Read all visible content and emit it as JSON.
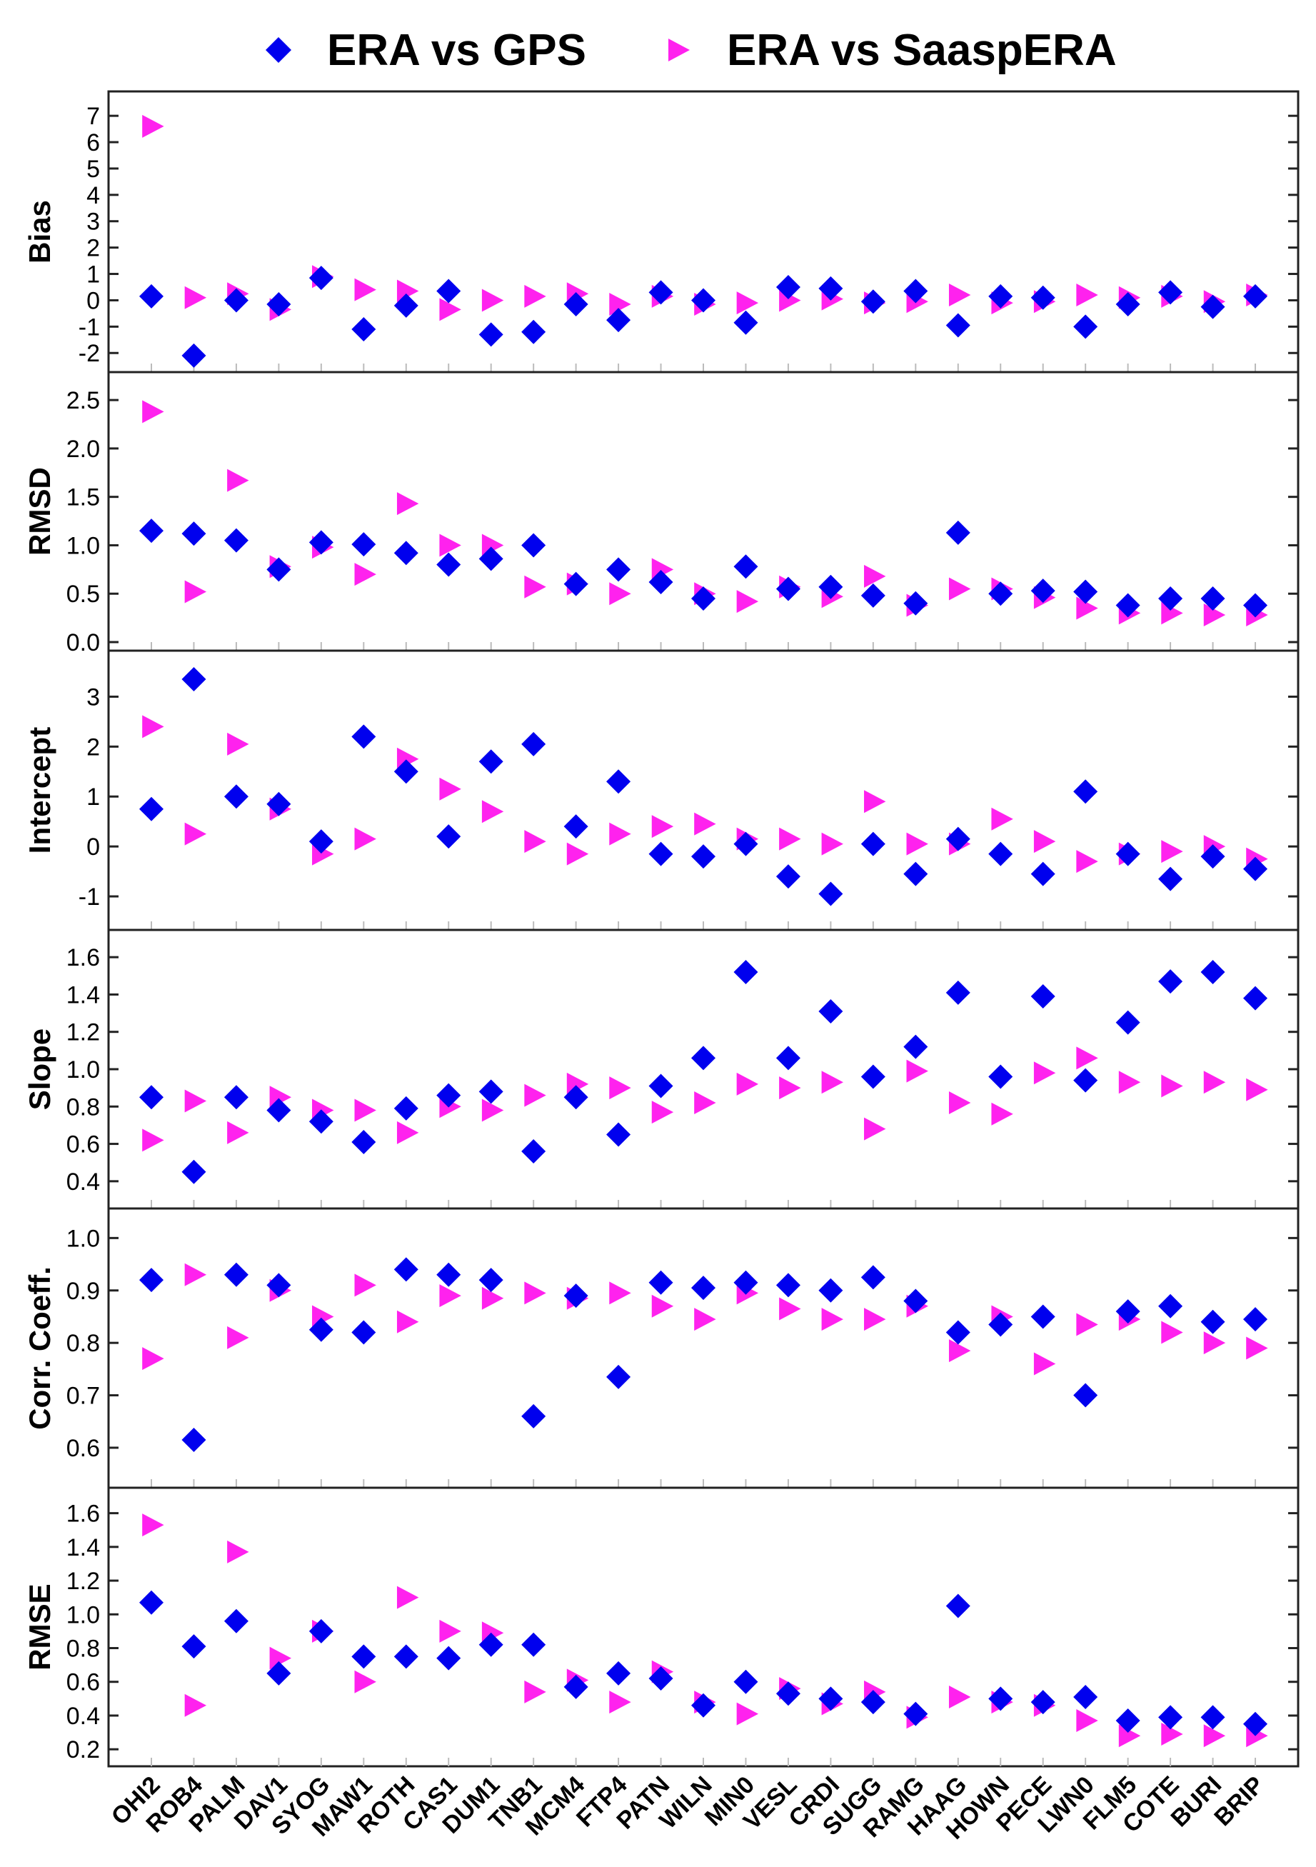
{
  "legend": {
    "series_a": "ERA vs GPS",
    "series_b": "ERA vs SaaspERA"
  },
  "colors": {
    "series_a": "#0000ee",
    "series_b": "#ff22ee",
    "axis": "#222222",
    "grid": "#bbbbbb"
  },
  "chart_data": {
    "type": "scatter",
    "shared_x": true,
    "categories": [
      "OHI2",
      "ROB4",
      "PALM",
      "DAV1",
      "SYOG",
      "MAW1",
      "ROTH",
      "CAS1",
      "DUM1",
      "TNB1",
      "MCM4",
      "FTP4",
      "PATN",
      "WILN",
      "MIN0",
      "VESL",
      "CRDI",
      "SUGG",
      "RAMG",
      "HAAG",
      "HOWN",
      "PECE",
      "LWN0",
      "FLM5",
      "COTE",
      "BURI",
      "BRIP"
    ],
    "series_names": [
      "ERA vs GPS",
      "ERA vs SaaspERA"
    ],
    "panels": [
      {
        "ylabel": "Bias",
        "ylim": [
          -2.4,
          7.6
        ],
        "yticks": [
          -2,
          -1,
          0,
          1,
          2,
          3,
          4,
          5,
          6,
          7
        ],
        "ytick_labels": [
          "-2",
          "-1",
          "0",
          "1",
          "2",
          "3",
          "4",
          "5",
          "6",
          "7"
        ],
        "series": [
          {
            "name": "ERA vs GPS",
            "values": [
              0.15,
              -2.1,
              0.0,
              -0.15,
              0.85,
              -1.1,
              -0.2,
              0.35,
              -1.3,
              -1.2,
              -0.15,
              -0.75,
              0.3,
              0.0,
              -0.85,
              0.5,
              0.45,
              -0.05,
              0.35,
              -0.95,
              0.15,
              0.1,
              -1.0,
              -0.15,
              0.3,
              -0.25,
              0.15
            ]
          },
          {
            "name": "ERA vs SaaspERA",
            "values": [
              6.6,
              0.1,
              0.25,
              -0.35,
              0.9,
              0.4,
              0.35,
              -0.35,
              0.0,
              0.15,
              0.25,
              -0.15,
              0.15,
              -0.15,
              -0.1,
              0.0,
              0.05,
              -0.1,
              -0.05,
              0.2,
              -0.1,
              -0.05,
              0.2,
              0.1,
              0.15,
              -0.05,
              0.2
            ]
          }
        ]
      },
      {
        "ylabel": "RMSD",
        "ylim": [
          0.0,
          2.7
        ],
        "yticks": [
          0.0,
          0.5,
          1.0,
          1.5,
          2.0,
          2.5
        ],
        "ytick_labels": [
          "0.0",
          "0.5",
          "1.0",
          "1.5",
          "2.0",
          "2.5"
        ],
        "series": [
          {
            "name": "ERA vs GPS",
            "values": [
              1.15,
              1.12,
              1.05,
              0.75,
              1.03,
              1.01,
              0.92,
              0.8,
              0.86,
              1.0,
              0.6,
              0.75,
              0.62,
              0.45,
              0.78,
              0.55,
              0.57,
              0.48,
              0.4,
              1.13,
              0.5,
              0.53,
              0.52,
              0.38,
              0.45,
              0.45,
              0.38
            ]
          },
          {
            "name": "ERA vs SaaspERA",
            "values": [
              2.38,
              0.52,
              1.67,
              0.78,
              0.98,
              0.7,
              1.43,
              1.0,
              1.0,
              0.57,
              0.6,
              0.5,
              0.75,
              0.5,
              0.42,
              0.57,
              0.47,
              0.68,
              0.38,
              0.55,
              0.55,
              0.46,
              0.35,
              0.3,
              0.3,
              0.28,
              0.28
            ]
          }
        ]
      },
      {
        "ylabel": "Intercept",
        "ylim": [
          -1.5,
          3.75
        ],
        "yticks": [
          -1,
          0,
          1,
          2,
          3
        ],
        "ytick_labels": [
          "-1",
          "0",
          "1",
          "2",
          "3"
        ],
        "series": [
          {
            "name": "ERA vs GPS",
            "values": [
              0.75,
              3.35,
              1.0,
              0.85,
              0.1,
              2.2,
              1.5,
              0.2,
              1.7,
              2.05,
              0.4,
              1.3,
              -0.15,
              -0.2,
              0.05,
              -0.6,
              -0.95,
              0.05,
              -0.55,
              0.15,
              -0.15,
              -0.55,
              1.1,
              -0.15,
              -0.65,
              -0.2,
              -0.45
            ]
          },
          {
            "name": "ERA vs SaaspERA",
            "values": [
              2.4,
              0.25,
              2.05,
              0.75,
              -0.15,
              0.15,
              1.75,
              1.15,
              0.7,
              0.1,
              -0.15,
              0.25,
              0.4,
              0.45,
              0.15,
              0.15,
              0.05,
              0.9,
              0.05,
              0.05,
              0.55,
              0.1,
              -0.3,
              -0.15,
              -0.1,
              0.0,
              -0.25
            ]
          }
        ]
      },
      {
        "ylabel": "Slope",
        "ylim": [
          0.3,
          1.7
        ],
        "yticks": [
          0.4,
          0.6,
          0.8,
          1.0,
          1.2,
          1.4,
          1.6
        ],
        "ytick_labels": [
          "0.4",
          "0.6",
          "0.8",
          "1.0",
          "1.2",
          "1.4",
          "1.6"
        ],
        "series": [
          {
            "name": "ERA vs GPS",
            "values": [
              0.85,
              0.45,
              0.85,
              0.78,
              0.72,
              0.61,
              0.79,
              0.86,
              0.88,
              0.56,
              0.85,
              0.65,
              0.91,
              1.06,
              1.52,
              1.06,
              1.31,
              0.96,
              1.12,
              1.41,
              0.96,
              1.39,
              0.94,
              1.25,
              1.47,
              1.52,
              1.38
            ]
          },
          {
            "name": "ERA vs SaaspERA",
            "values": [
              0.62,
              0.83,
              0.66,
              0.85,
              0.78,
              0.78,
              0.66,
              0.8,
              0.78,
              0.86,
              0.92,
              0.9,
              0.77,
              0.82,
              0.92,
              0.9,
              0.93,
              0.68,
              0.99,
              0.82,
              0.76,
              0.98,
              1.06,
              0.93,
              0.91,
              0.93,
              0.89
            ]
          }
        ]
      },
      {
        "ylabel": "Corr. Coeff.",
        "ylim": [
          0.54,
          1.04
        ],
        "yticks": [
          0.6,
          0.7,
          0.8,
          0.9,
          1.0
        ],
        "ytick_labels": [
          "0.6",
          "0.7",
          "0.8",
          "0.9",
          "1.0"
        ],
        "series": [
          {
            "name": "ERA vs GPS",
            "values": [
              0.92,
              0.615,
              0.93,
              0.91,
              0.825,
              0.82,
              0.94,
              0.93,
              0.92,
              0.66,
              0.89,
              0.735,
              0.915,
              0.905,
              0.915,
              0.91,
              0.9,
              0.925,
              0.88,
              0.82,
              0.835,
              0.85,
              0.7,
              0.86,
              0.87,
              0.84,
              0.845
            ]
          },
          {
            "name": "ERA vs SaaspERA",
            "values": [
              0.77,
              0.93,
              0.81,
              0.9,
              0.85,
              0.91,
              0.84,
              0.89,
              0.885,
              0.895,
              0.885,
              0.895,
              0.87,
              0.845,
              0.895,
              0.865,
              0.845,
              0.845,
              0.87,
              0.785,
              0.85,
              0.76,
              0.835,
              0.845,
              0.82,
              0.8,
              0.79
            ]
          }
        ]
      },
      {
        "ylabel": "RMSE",
        "ylim": [
          0.15,
          1.7
        ],
        "yticks": [
          0.2,
          0.4,
          0.6,
          0.8,
          1.0,
          1.2,
          1.4,
          1.6
        ],
        "ytick_labels": [
          "0.2",
          "0.4",
          "0.6",
          "0.8",
          "1.0",
          "1.2",
          "1.4",
          "1.6"
        ],
        "series": [
          {
            "name": "ERA vs GPS",
            "values": [
              1.07,
              0.81,
              0.96,
              0.65,
              0.9,
              0.75,
              0.75,
              0.74,
              0.82,
              0.82,
              0.57,
              0.65,
              0.62,
              0.46,
              0.6,
              0.53,
              0.5,
              0.48,
              0.41,
              1.05,
              0.5,
              0.48,
              0.51,
              0.37,
              0.39,
              0.39,
              0.35
            ]
          },
          {
            "name": "ERA vs SaaspERA",
            "values": [
              1.53,
              0.46,
              1.37,
              0.74,
              0.9,
              0.6,
              1.1,
              0.9,
              0.89,
              0.54,
              0.61,
              0.48,
              0.66,
              0.48,
              0.41,
              0.56,
              0.47,
              0.54,
              0.39,
              0.51,
              0.48,
              0.46,
              0.37,
              0.28,
              0.29,
              0.28,
              0.28
            ]
          }
        ]
      }
    ]
  }
}
